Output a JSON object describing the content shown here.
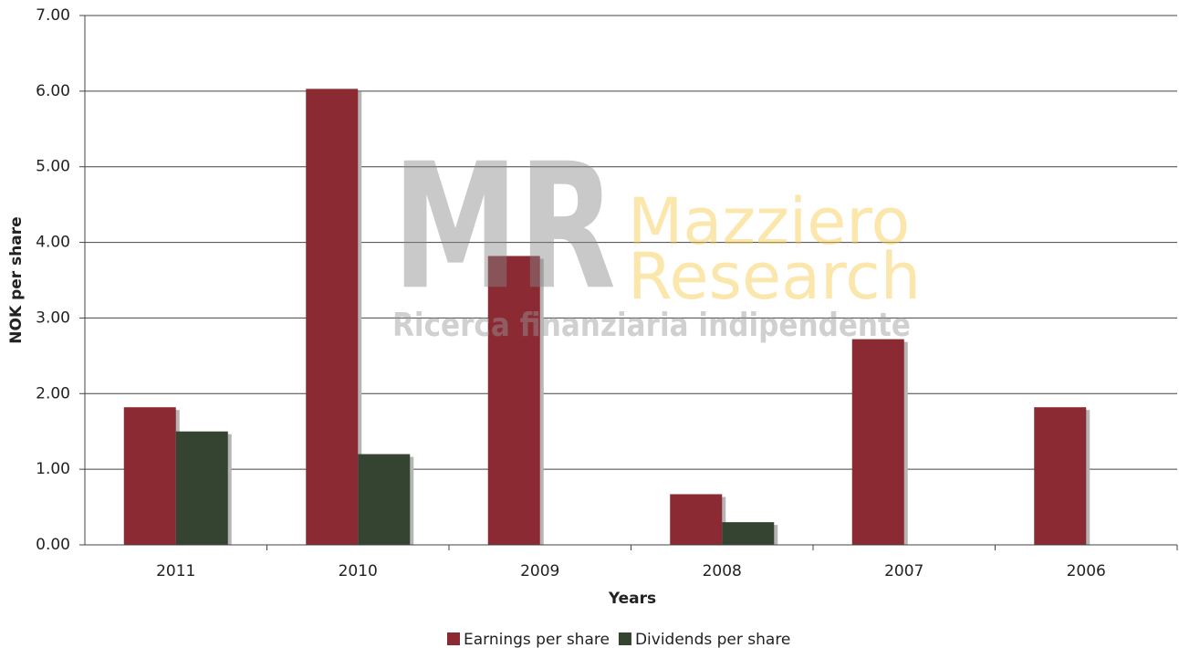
{
  "chart_data": {
    "type": "bar",
    "x_label": "Years",
    "y_label": "NOK per share",
    "categories": [
      "2011",
      "2010",
      "2009",
      "2008",
      "2007",
      "2006"
    ],
    "series": [
      {
        "name": "Earnings per share",
        "color": "#8b2a33",
        "values": [
          1.82,
          6.03,
          3.82,
          0.67,
          2.72,
          1.82
        ]
      },
      {
        "name": "Dividends per share",
        "color": "#344430",
        "values": [
          1.5,
          1.2,
          null,
          0.3,
          null,
          null
        ]
      }
    ],
    "ylim": [
      0,
      7
    ],
    "yticks": [
      {
        "value": 0,
        "label": "0.00"
      },
      {
        "value": 1,
        "label": "1.00"
      },
      {
        "value": 2,
        "label": "2.00"
      },
      {
        "value": 3,
        "label": "3.00"
      },
      {
        "value": 4,
        "label": "4.00"
      },
      {
        "value": 5,
        "label": "5.00"
      },
      {
        "value": 6,
        "label": "6.00"
      },
      {
        "value": 7,
        "label": "7.00"
      }
    ],
    "grid": true,
    "watermark": {
      "logo": "MR",
      "name_line1": "Mazziero",
      "name_line2": "Research",
      "tagline": "Ricerca finanziaria indipendente"
    }
  }
}
